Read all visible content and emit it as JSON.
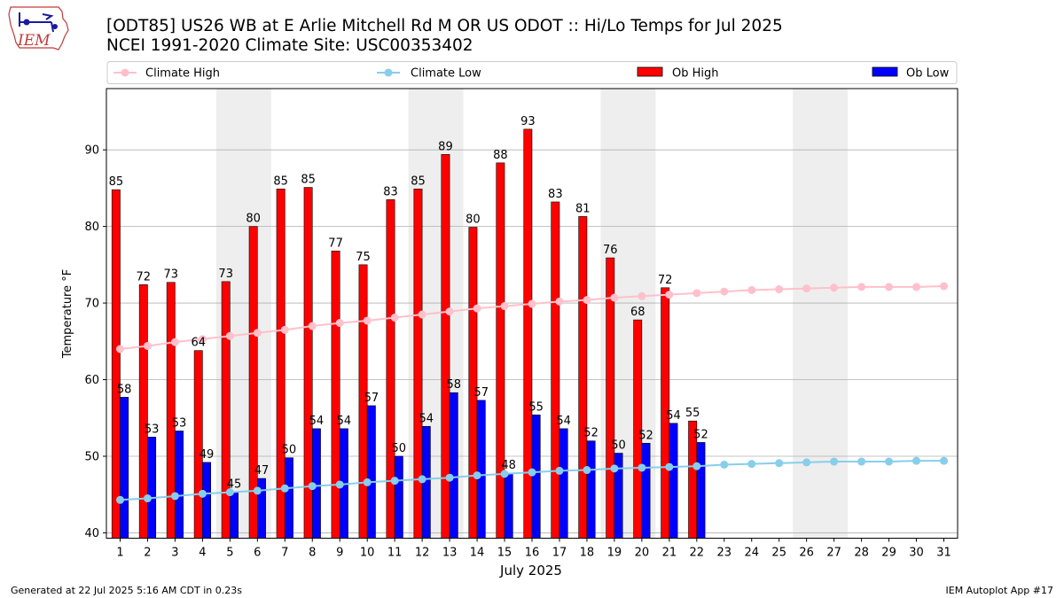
{
  "title_line1": "[ODT85] US26 WB at E Arlie Mitchell Rd M OR US ODOT :: Hi/Lo Temps for Jul 2025",
  "title_line2": "NCEI 1991-2020 Climate Site: USC00353402",
  "logo_text": "IEM",
  "footer_left": "Generated at 22 Jul 2025 5:16 AM CDT in 0.23s",
  "footer_right": "IEM Autoplot App #17",
  "colors": {
    "ob_high": "#ff0000",
    "ob_low": "#0000ff",
    "climate_high": "#ffc0cb",
    "climate_low": "#87ceeb",
    "weekend_shade": "#eeeeee",
    "grid": "#b0b0b0"
  },
  "chart_data": {
    "type": "bar",
    "xlabel": "July 2025",
    "ylabel": "Temperature °F",
    "ylim": [
      39.3,
      98
    ],
    "yticks": [
      40,
      50,
      60,
      70,
      80,
      90
    ],
    "grid": "horizontal",
    "legend_position": "top, outside plot",
    "legend": [
      "Climate High",
      "Climate Low",
      "Ob High",
      "Ob Low"
    ],
    "shaded_days": [
      5,
      6,
      12,
      13,
      19,
      20,
      26,
      27
    ],
    "days": [
      1,
      2,
      3,
      4,
      5,
      6,
      7,
      8,
      9,
      10,
      11,
      12,
      13,
      14,
      15,
      16,
      17,
      18,
      19,
      20,
      21,
      22,
      23,
      24,
      25,
      26,
      27,
      28,
      29,
      30,
      31
    ],
    "ob_high": {
      "name": "Ob High",
      "values": [
        84.8,
        72.4,
        72.7,
        63.8,
        72.8,
        80,
        84.9,
        85.1,
        76.8,
        75,
        83.5,
        84.9,
        89.4,
        79.9,
        88.3,
        92.7,
        83.2,
        81.3,
        75.9,
        67.8,
        72,
        54.6
      ],
      "labels": [
        "85",
        "72",
        "73",
        "64",
        "73",
        "80",
        "85",
        "85",
        "77",
        "75",
        "83",
        "85",
        "89",
        "80",
        "88",
        "93",
        "83",
        "81",
        "76",
        "68",
        "72",
        "55"
      ]
    },
    "ob_low": {
      "name": "Ob Low",
      "values": [
        57.7,
        52.5,
        53.3,
        49.2,
        45.3,
        47.1,
        49.8,
        53.6,
        53.6,
        56.6,
        50,
        53.9,
        58.3,
        57.3,
        47.8,
        55.4,
        53.6,
        52,
        50.4,
        51.7,
        54.3,
        51.8
      ],
      "labels": [
        "58",
        "53",
        "53",
        "49",
        "45",
        "47",
        "50",
        "54",
        "54",
        "57",
        "50",
        "54",
        "58",
        "57",
        "48",
        "55",
        "54",
        "52",
        "50",
        "52",
        "54",
        "52"
      ]
    },
    "climate_high": {
      "name": "Climate High",
      "values": [
        64,
        64.4,
        64.9,
        65.3,
        65.7,
        66.1,
        66.5,
        67,
        67.4,
        67.7,
        68.1,
        68.5,
        68.9,
        69.3,
        69.6,
        69.9,
        70.2,
        70.4,
        70.7,
        70.9,
        71.1,
        71.3,
        71.5,
        71.7,
        71.8,
        71.9,
        72,
        72.1,
        72.1,
        72.1,
        72.2
      ]
    },
    "climate_low": {
      "name": "Climate Low",
      "values": [
        44.3,
        44.5,
        44.8,
        45.1,
        45.3,
        45.5,
        45.8,
        46.1,
        46.3,
        46.6,
        46.8,
        47,
        47.2,
        47.5,
        47.7,
        47.9,
        48.1,
        48.2,
        48.4,
        48.5,
        48.6,
        48.7,
        48.9,
        49,
        49.1,
        49.2,
        49.3,
        49.3,
        49.3,
        49.4,
        49.4
      ]
    }
  }
}
